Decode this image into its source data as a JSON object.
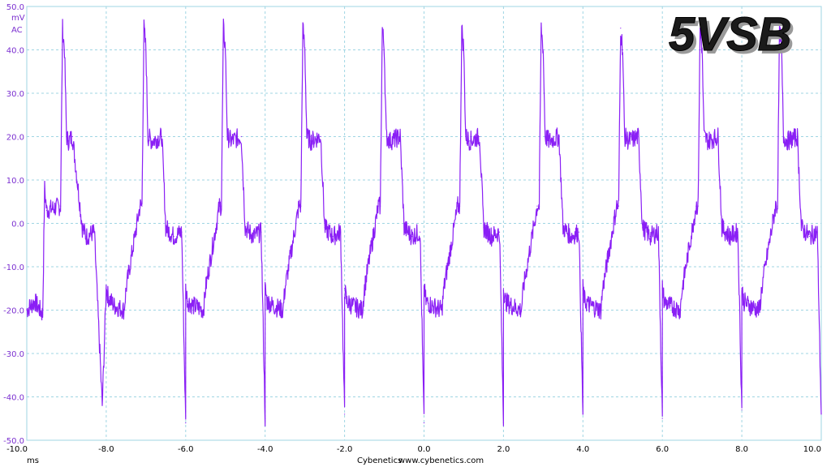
{
  "rail_label": "5VSB",
  "footer": {
    "brand": "Cybenetics",
    "url": "www.cybenetics.com"
  },
  "y_axis": {
    "unit": "mV",
    "coupling": "AC"
  },
  "x_axis": {
    "unit": "ms"
  },
  "colors": {
    "trace": "#8A1FF5",
    "grid": "#9FD5E3",
    "y_labels": "#7B2FD0",
    "background": "#FFFFFF"
  },
  "chart_data": {
    "type": "line",
    "title": "5VSB",
    "xlabel": "ms",
    "ylabel": "mV",
    "xlim": [
      -10.0,
      10.0
    ],
    "ylim": [
      -50.0,
      50.0
    ],
    "grid": true,
    "x_ticks": [
      "-10.0",
      "-8.0",
      "-6.0",
      "-4.0",
      "-2.0",
      "0.0",
      "2.0",
      "4.0",
      "6.0",
      "8.0",
      "10.0"
    ],
    "y_ticks": [
      "50.0",
      "40.0",
      "30.0",
      "20.0",
      "10.0",
      "0.0",
      "-10.0",
      "-20.0",
      "-30.0",
      "-40.0",
      "-50.0"
    ],
    "period_ms": 2.0,
    "series": [
      {
        "name": "",
        "x": [
          -10.0,
          -9.8,
          -9.6,
          -9.55,
          -9.5,
          -9.15,
          -9.1,
          -9.05,
          -9.0,
          -8.95,
          -8.85,
          -8.6,
          -8.5,
          -8.3,
          -8.1,
          -8.0,
          -8.0,
          -7.95,
          -7.8,
          -7.55,
          -7.5,
          -7.15,
          -7.1,
          -7.05,
          -7.0,
          -6.95,
          -6.85,
          -6.6,
          -6.5,
          -6.3,
          -6.1,
          -6.0,
          -6.0,
          -5.95,
          -5.8,
          -5.55,
          -5.5,
          -5.15,
          -5.1,
          -5.05,
          -5.0,
          -4.95,
          -4.85,
          -4.6,
          -4.5,
          -4.3,
          -4.1,
          -4.0,
          -4.0,
          -3.95,
          -3.8,
          -3.55,
          -3.5,
          -3.15,
          -3.1,
          -3.05,
          -3.0,
          -2.95,
          -2.85,
          -2.6,
          -2.5,
          -2.3,
          -2.1,
          -2.0,
          -2.0,
          -1.95,
          -1.8,
          -1.55,
          -1.5,
          -1.15,
          -1.1,
          -1.05,
          -1.0,
          -0.95,
          -0.85,
          -0.6,
          -0.5,
          -0.3,
          -0.1,
          0.0,
          0.0,
          0.05,
          0.2,
          0.45,
          0.5,
          0.85,
          0.9,
          0.95,
          1.0,
          1.05,
          1.15,
          1.4,
          1.5,
          1.7,
          1.9,
          2.0,
          2.0,
          2.05,
          2.2,
          2.45,
          2.5,
          2.85,
          2.9,
          2.95,
          3.0,
          3.05,
          3.15,
          3.4,
          3.5,
          3.7,
          3.9,
          4.0,
          4.0,
          4.05,
          4.2,
          4.45,
          4.5,
          4.85,
          4.9,
          4.95,
          5.0,
          5.05,
          5.15,
          5.4,
          5.5,
          5.7,
          5.9,
          6.0,
          6.0,
          6.05,
          6.2,
          6.45,
          6.5,
          6.85,
          6.9,
          6.95,
          7.0,
          7.05,
          7.15,
          7.4,
          7.5,
          7.7,
          7.9,
          8.0,
          8.0,
          8.05,
          8.2,
          8.45,
          8.5,
          8.85,
          8.9,
          8.95,
          9.0,
          9.05,
          9.15,
          9.4,
          9.5,
          9.7,
          9.9,
          10.0
        ],
        "y": [
          -20,
          -18,
          -21,
          8,
          3,
          4,
          45,
          40,
          20,
          19,
          20,
          -1,
          -3,
          -2,
          -42,
          -15,
          -15,
          -17,
          -19,
          -20,
          -15,
          4,
          4,
          45,
          40,
          20,
          19,
          20,
          -1,
          -3,
          -2,
          -46,
          -15,
          -18,
          -19,
          -20,
          -15,
          4,
          4,
          45,
          40,
          20,
          19,
          20,
          -1,
          -3,
          -2,
          -45,
          -15,
          -18,
          -19,
          -20,
          -15,
          4,
          4,
          45,
          40,
          20,
          19,
          20,
          -1,
          -3,
          -2,
          -44,
          -15,
          -18,
          -19,
          -20,
          -15,
          4,
          4,
          45,
          40,
          20,
          19,
          20,
          -1,
          -3,
          -2,
          -46,
          -15,
          -18,
          -19,
          -20,
          -15,
          4,
          4,
          45,
          40,
          20,
          19,
          20,
          -1,
          -3,
          -2,
          -46,
          -15,
          -18,
          -19,
          -20,
          -15,
          4,
          4,
          45,
          40,
          20,
          19,
          20,
          -1,
          -3,
          -2,
          -44,
          -15,
          -18,
          -19,
          -20,
          -15,
          4,
          4,
          45,
          40,
          20,
          19,
          20,
          -1,
          -3,
          -2,
          -45,
          -15,
          -18,
          -19,
          -20,
          -15,
          4,
          4,
          45,
          40,
          20,
          19,
          20,
          -1,
          -3,
          -2,
          -43,
          -15,
          -18,
          -19,
          -20,
          -15,
          4,
          4,
          45,
          40,
          20,
          19,
          20,
          -1,
          -3,
          -2,
          -44
        ]
      }
    ]
  }
}
